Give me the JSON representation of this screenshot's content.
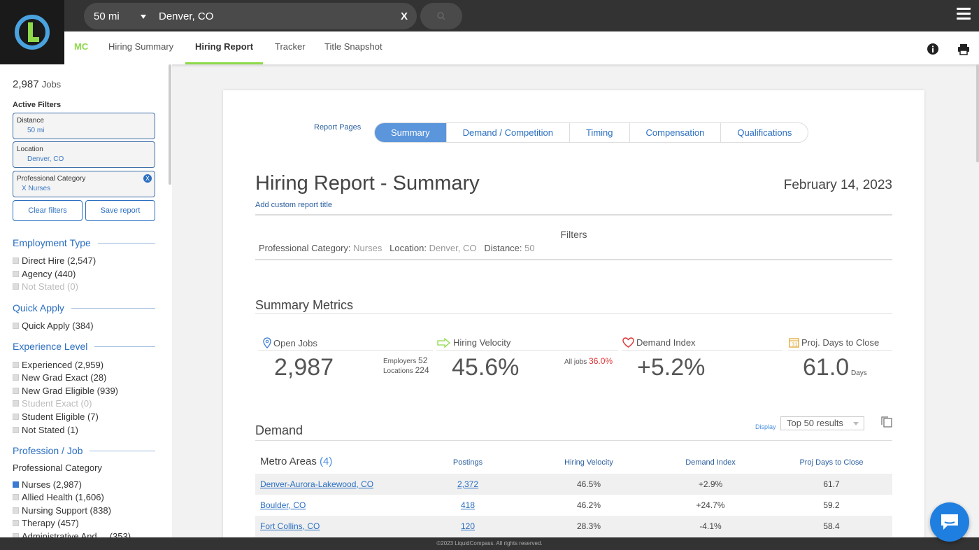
{
  "search": {
    "distance": "50 mi",
    "location": "Denver, CO",
    "clear": "X"
  },
  "nav": {
    "brand": "MC",
    "tabs": [
      "Hiring Summary",
      "Hiring Report",
      "Tracker",
      "Title Snapshot"
    ],
    "active_tab": "Hiring Report"
  },
  "sidebar": {
    "jobs_count": "2,987",
    "jobs_label": "Jobs",
    "active_filters_label": "Active Filters",
    "filters": [
      {
        "key": "Distance",
        "value": "50 mi"
      },
      {
        "key": "Location",
        "value": "Denver, CO"
      },
      {
        "key": "Professional Category",
        "value": "X  Nurses",
        "removable": "X"
      }
    ],
    "clear_filters": "Clear filters",
    "save_report": "Save report",
    "employment_type": {
      "title": "Employment Type",
      "items": [
        "Direct Hire (2,547)",
        "Agency (440)",
        "Not Stated (0)"
      ]
    },
    "quick_apply": {
      "title": "Quick Apply",
      "items": [
        "Quick Apply (384)"
      ]
    },
    "experience": {
      "title": "Experience Level",
      "items": [
        "Experienced (2,959)",
        "New Grad Exact (28)",
        "New Grad Eligible (939)",
        "Student Exact (0)",
        "Student Eligible (7)",
        "Not Stated (1)"
      ]
    },
    "profession": {
      "title": "Profession / Job",
      "subtitle": "Professional Category",
      "items": [
        "Nurses (2,987)",
        "Allied Health (1,606)",
        "Nursing Support (838)",
        "Therapy (457)",
        "Administrative And ... (353)"
      ]
    }
  },
  "report": {
    "pages_label": "Report Pages",
    "pages": [
      "Summary",
      "Demand / Competition",
      "Timing",
      "Compensation",
      "Qualifications"
    ],
    "active_page": "Summary",
    "title": "Hiring Report - Summary",
    "date": "February 14, 2023",
    "add_title": "Add custom report title",
    "filters_heading": "Filters",
    "filters": [
      {
        "key": "Professional Category:",
        "value": "Nurses"
      },
      {
        "key": "Location:",
        "value": "Denver, CO"
      },
      {
        "key": "Distance:",
        "value": "50"
      }
    ],
    "summary_heading": "Summary Metrics",
    "metrics": {
      "open_jobs": {
        "label": "Open Jobs",
        "value": "2,987",
        "employers_label": "Employers",
        "employers": "52",
        "locations_label": "Locations",
        "locations": "224"
      },
      "hiring_velocity": {
        "label": "Hiring Velocity",
        "value": "45.6%",
        "all_jobs_label": "All jobs",
        "all_jobs": "36.0%"
      },
      "demand_index": {
        "label": "Demand Index",
        "value": "+5.2%"
      },
      "days_to_close": {
        "label": "Proj. Days to Close",
        "value": "61.0",
        "unit": "Days"
      }
    },
    "demand_heading": "Demand",
    "display_label": "Display",
    "display_value": "Top 50 results",
    "table": {
      "title": "Metro Areas",
      "count": "(4)",
      "headers": [
        "Postings",
        "Hiring Velocity",
        "Demand Index",
        "Proj Days to Close"
      ],
      "rows": [
        {
          "metro": "Denver-Aurora-Lakewood, CO",
          "postings": "2,372",
          "velocity": "46.5%",
          "demand": "+2.9%",
          "days": "61.7"
        },
        {
          "metro": "Boulder, CO",
          "postings": "418",
          "velocity": "46.2%",
          "demand": "+24.7%",
          "days": "59.2"
        },
        {
          "metro": "Fort Collins, CO",
          "postings": "120",
          "velocity": "28.3%",
          "demand": "-4.1%",
          "days": "58.4"
        }
      ]
    }
  },
  "footer": "©2023 LiquidCompass. All rights reserved.",
  "colors": {
    "accent": "#8dd94a",
    "primary": "#2b6fc1",
    "pill_active": "#5b95db",
    "topbar": "#333333"
  }
}
